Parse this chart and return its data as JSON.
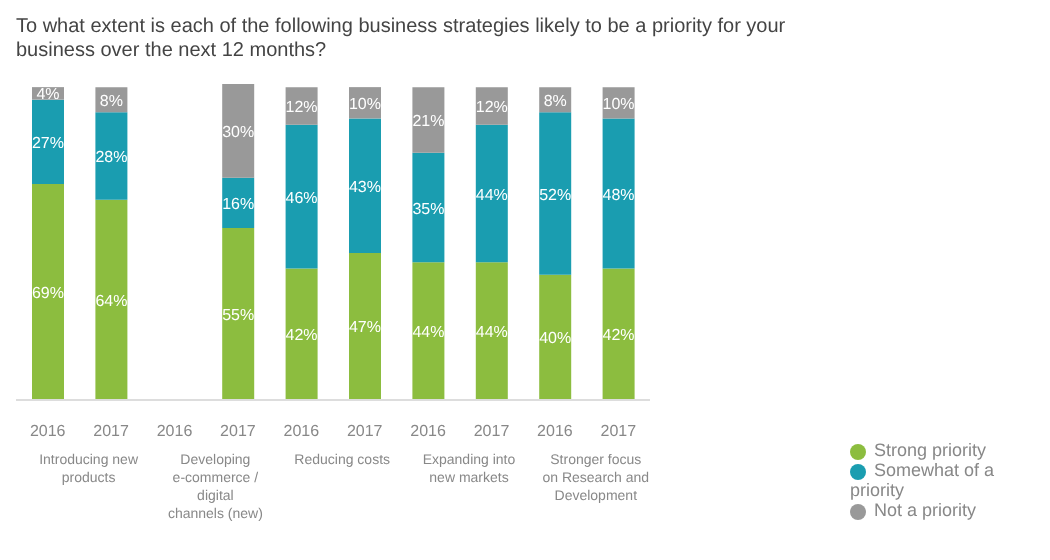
{
  "chart_data": {
    "type": "bar",
    "stacked": true,
    "title": "To what extent is each of the following business strategies likely to be a priority for your business over the next 12 months?",
    "categories": [
      "2016",
      "2017",
      "2016",
      "2017",
      "2016",
      "2017",
      "2016",
      "2017",
      "2016",
      "2017"
    ],
    "annotations": [
      "Introducing new products",
      "Developing e-commerce / digital channels (new)",
      "Reducing costs",
      "Expanding into new markets",
      "Stronger focus on Research and Development"
    ],
    "series": [
      {
        "name": "Strong priority",
        "color": "#8cbd3f",
        "values": [
          69,
          64,
          null,
          55,
          42,
          47,
          44,
          44,
          40,
          42
        ],
        "value_labels": [
          "69%",
          "64%",
          null,
          "55%",
          "42%",
          "47%",
          "44%",
          "44%",
          "40%",
          "42%"
        ]
      },
      {
        "name": "Somewhat of a priority",
        "color": "#1a9db0",
        "values": [
          27,
          28,
          null,
          16,
          46,
          43,
          35,
          44,
          52,
          48
        ],
        "value_labels": [
          "27%",
          "28%",
          null,
          "16%",
          "46%",
          "43%",
          "35%",
          "44%",
          "52%",
          "48%"
        ]
      },
      {
        "name": "Not a priority",
        "color": "#999999",
        "values": [
          4,
          8,
          null,
          30,
          12,
          10,
          21,
          12,
          8,
          10
        ],
        "value_labels": [
          "4%",
          "8%",
          null,
          "30%",
          "12%",
          "10%",
          "21%",
          "12%",
          "8%",
          "10%"
        ]
      }
    ],
    "legend": "right"
  }
}
